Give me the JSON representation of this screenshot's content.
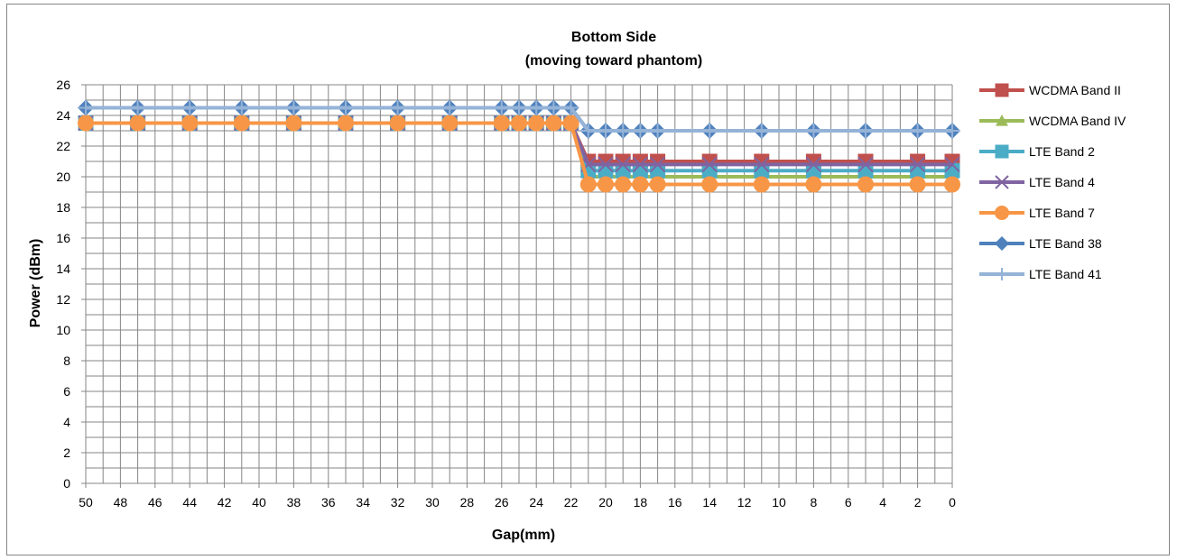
{
  "chart_data": {
    "type": "line",
    "title": "Bottom Side",
    "subtitle": "(moving toward phantom)",
    "xlabel": "Gap(mm)",
    "ylabel": "Power (dBm)",
    "xlim": [
      50,
      0
    ],
    "x_reversed": true,
    "ylim": [
      0,
      26
    ],
    "x_ticks": [
      "50",
      "48",
      "46",
      "44",
      "42",
      "40",
      "38",
      "36",
      "34",
      "32",
      "30",
      "28",
      "26",
      "24",
      "22",
      "20",
      "18",
      "16",
      "14",
      "12",
      "10",
      "8",
      "6",
      "4",
      "2",
      "0"
    ],
    "y_ticks": [
      "0",
      "2",
      "4",
      "6",
      "8",
      "10",
      "12",
      "14",
      "16",
      "18",
      "20",
      "22",
      "24",
      "26"
    ],
    "grid": true,
    "legend_position": "right",
    "x": [
      50,
      47,
      44,
      41,
      38,
      35,
      32,
      29,
      26,
      25,
      24,
      23,
      22,
      21,
      20,
      19,
      18,
      17,
      14,
      11,
      8,
      5,
      2,
      0
    ],
    "series": [
      {
        "name": "WCDMA Band II",
        "color": "#C0504D",
        "marker": "square",
        "values": [
          23.5,
          23.5,
          23.5,
          23.5,
          23.5,
          23.5,
          23.5,
          23.5,
          23.5,
          23.5,
          23.5,
          23.5,
          23.5,
          21.0,
          21.0,
          21.0,
          21.0,
          21.0,
          21.0,
          21.0,
          21.0,
          21.0,
          21.0,
          21.0
        ]
      },
      {
        "name": "WCDMA Band IV",
        "color": "#9BBB59",
        "marker": "triangle",
        "values": [
          23.5,
          23.5,
          23.5,
          23.5,
          23.5,
          23.5,
          23.5,
          23.5,
          23.5,
          23.5,
          23.5,
          23.5,
          23.5,
          20.0,
          20.0,
          20.0,
          20.0,
          20.0,
          20.0,
          20.0,
          20.0,
          20.0,
          20.0,
          20.0
        ]
      },
      {
        "name": "LTE Band 2",
        "color": "#4BACC6",
        "marker": "square",
        "values": [
          23.5,
          23.5,
          23.5,
          23.5,
          23.5,
          23.5,
          23.5,
          23.5,
          23.5,
          23.5,
          23.5,
          23.5,
          23.5,
          20.4,
          20.4,
          20.4,
          20.4,
          20.4,
          20.4,
          20.4,
          20.4,
          20.4,
          20.4,
          20.4
        ]
      },
      {
        "name": "LTE Band 4",
        "color": "#8064A2",
        "marker": "x",
        "values": [
          23.5,
          23.5,
          23.5,
          23.5,
          23.5,
          23.5,
          23.5,
          23.5,
          23.5,
          23.5,
          23.5,
          23.5,
          23.5,
          20.8,
          20.8,
          20.8,
          20.8,
          20.8,
          20.8,
          20.8,
          20.8,
          20.8,
          20.8,
          20.8
        ]
      },
      {
        "name": "LTE Band 7",
        "color": "#F79646",
        "marker": "circle",
        "values": [
          23.5,
          23.5,
          23.5,
          23.5,
          23.5,
          23.5,
          23.5,
          23.5,
          23.5,
          23.5,
          23.5,
          23.5,
          23.5,
          19.5,
          19.5,
          19.5,
          19.5,
          19.5,
          19.5,
          19.5,
          19.5,
          19.5,
          19.5,
          19.5
        ]
      },
      {
        "name": "LTE Band 38",
        "color": "#4F81BD",
        "marker": "diamond",
        "values": [
          24.5,
          24.5,
          24.5,
          24.5,
          24.5,
          24.5,
          24.5,
          24.5,
          24.5,
          24.5,
          24.5,
          24.5,
          24.5,
          23.0,
          23.0,
          23.0,
          23.0,
          23.0,
          23.0,
          23.0,
          23.0,
          23.0,
          23.0,
          23.0
        ]
      },
      {
        "name": "LTE Band 41",
        "color": "#95B3D7",
        "marker": "plus",
        "values": [
          24.5,
          24.5,
          24.5,
          24.5,
          24.5,
          24.5,
          24.5,
          24.5,
          24.5,
          24.5,
          24.5,
          24.5,
          24.5,
          23.0,
          23.0,
          23.0,
          23.0,
          23.0,
          23.0,
          23.0,
          23.0,
          23.0,
          23.0,
          23.0
        ]
      }
    ]
  }
}
